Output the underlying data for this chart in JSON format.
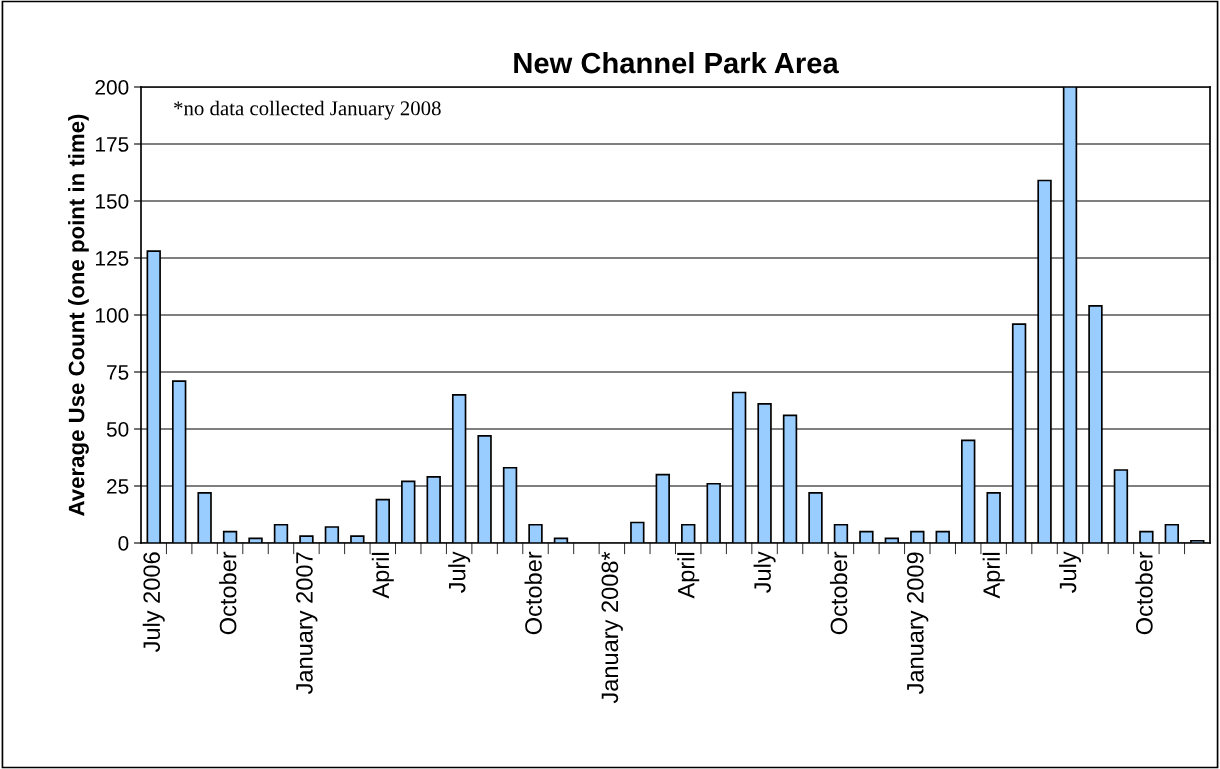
{
  "chart_data": {
    "type": "bar",
    "title": "New Channel Park Area",
    "ylabel": "Average Use Count (one point in time)",
    "categories": [
      "July 2006",
      null,
      null,
      "October",
      null,
      null,
      "January 2007",
      null,
      null,
      "April",
      null,
      null,
      "July",
      null,
      null,
      "October",
      null,
      null,
      "January 2008*",
      null,
      null,
      "April",
      null,
      null,
      "July",
      null,
      null,
      "October",
      null,
      null,
      "January 2009",
      null,
      null,
      "April",
      null,
      null,
      "July",
      null,
      null,
      "October",
      null,
      null
    ],
    "values": [
      128,
      71,
      22,
      5,
      2,
      8,
      3,
      7,
      3,
      19,
      27,
      29,
      65,
      47,
      33,
      8,
      2,
      null,
      null,
      9,
      30,
      8,
      26,
      66,
      61,
      56,
      22,
      8,
      5,
      2,
      5,
      5,
      45,
      22,
      96,
      159,
      200,
      104,
      32,
      5,
      8,
      1
    ],
    "color": "#99ccff",
    "ylim": [
      0,
      200
    ],
    "yticks": [
      0,
      25,
      50,
      75,
      100,
      125,
      150,
      175,
      200
    ],
    "grid": "y",
    "annotations": [
      "*no data collected January 2008"
    ]
  }
}
